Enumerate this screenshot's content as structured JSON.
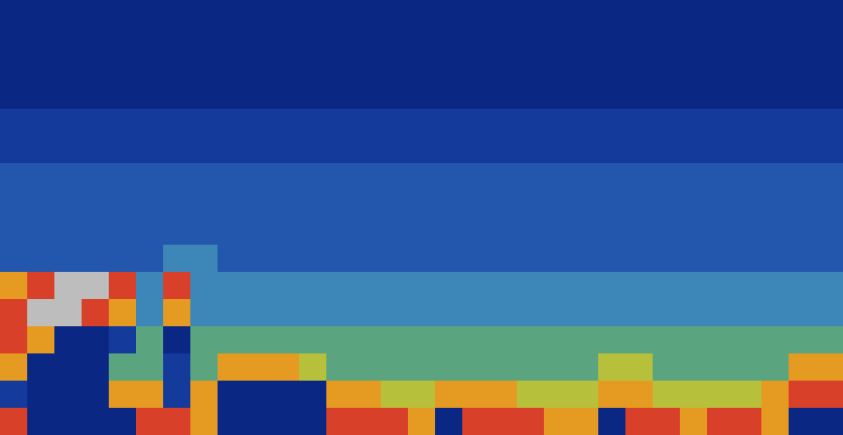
{
  "chart_data": {
    "type": "heatmap",
    "tick_labels": false,
    "clim": [
      0,
      8
    ],
    "colors": [
      "#0b2784",
      "#143b9c",
      "#2356ad",
      "#3c86b8",
      "#5aa57f",
      "#b7c03a",
      "#e59a22",
      "#d8402a",
      "#bdbdbd"
    ],
    "cells": [
      [
        0,
        0,
        0,
        0,
        0,
        0,
        0,
        0,
        0,
        0,
        0,
        0,
        0,
        0,
        0,
        0,
        0,
        0,
        0,
        0,
        0,
        0,
        0,
        0,
        0,
        0,
        0,
        0,
        0,
        0,
        0
      ],
      [
        0,
        0,
        0,
        0,
        0,
        0,
        0,
        0,
        0,
        0,
        0,
        0,
        0,
        0,
        0,
        0,
        0,
        0,
        0,
        0,
        0,
        0,
        0,
        0,
        0,
        0,
        0,
        0,
        0,
        0,
        0
      ],
      [
        0,
        0,
        0,
        0,
        0,
        0,
        0,
        0,
        0,
        0,
        0,
        0,
        0,
        0,
        0,
        0,
        0,
        0,
        0,
        0,
        0,
        0,
        0,
        0,
        0,
        0,
        0,
        0,
        0,
        0,
        0
      ],
      [
        0,
        0,
        0,
        0,
        0,
        0,
        0,
        0,
        0,
        0,
        0,
        0,
        0,
        0,
        0,
        0,
        0,
        0,
        0,
        0,
        0,
        0,
        0,
        0,
        0,
        0,
        0,
        0,
        0,
        0,
        0
      ],
      [
        1,
        1,
        1,
        1,
        1,
        1,
        1,
        1,
        1,
        1,
        1,
        1,
        1,
        1,
        1,
        1,
        1,
        1,
        1,
        1,
        1,
        1,
        1,
        1,
        1,
        1,
        1,
        1,
        1,
        1,
        1
      ],
      [
        1,
        1,
        1,
        1,
        1,
        1,
        1,
        1,
        1,
        1,
        1,
        1,
        1,
        1,
        1,
        1,
        1,
        1,
        1,
        1,
        1,
        1,
        1,
        1,
        1,
        1,
        1,
        1,
        1,
        1,
        1
      ],
      [
        2,
        2,
        2,
        2,
        2,
        2,
        2,
        2,
        2,
        2,
        2,
        2,
        2,
        2,
        2,
        2,
        2,
        2,
        2,
        2,
        2,
        2,
        2,
        2,
        2,
        2,
        2,
        2,
        2,
        2,
        2
      ],
      [
        2,
        2,
        2,
        2,
        2,
        2,
        2,
        2,
        2,
        2,
        2,
        2,
        2,
        2,
        2,
        2,
        2,
        2,
        2,
        2,
        2,
        2,
        2,
        2,
        2,
        2,
        2,
        2,
        2,
        2,
        2
      ],
      [
        2,
        2,
        2,
        2,
        2,
        2,
        2,
        2,
        2,
        2,
        2,
        2,
        2,
        2,
        2,
        2,
        2,
        2,
        2,
        2,
        2,
        2,
        2,
        2,
        2,
        2,
        2,
        2,
        2,
        2,
        2
      ],
      [
        2,
        2,
        2,
        2,
        2,
        2,
        3,
        3,
        2,
        2,
        2,
        2,
        2,
        2,
        2,
        2,
        2,
        2,
        2,
        2,
        2,
        2,
        2,
        2,
        2,
        2,
        2,
        2,
        2,
        2,
        2
      ],
      [
        6,
        7,
        8,
        8,
        7,
        3,
        7,
        3,
        3,
        3,
        3,
        3,
        3,
        3,
        3,
        3,
        3,
        3,
        3,
        3,
        3,
        3,
        3,
        3,
        3,
        3,
        3,
        3,
        3,
        3,
        3
      ],
      [
        7,
        8,
        8,
        7,
        6,
        3,
        6,
        3,
        3,
        3,
        3,
        3,
        3,
        3,
        3,
        3,
        3,
        3,
        3,
        3,
        3,
        3,
        3,
        3,
        3,
        3,
        3,
        3,
        3,
        3,
        3
      ],
      [
        7,
        6,
        0,
        0,
        1,
        4,
        0,
        4,
        4,
        4,
        4,
        4,
        4,
        4,
        4,
        4,
        4,
        4,
        4,
        4,
        4,
        4,
        4,
        4,
        4,
        4,
        4,
        4,
        4,
        4,
        4
      ],
      [
        6,
        0,
        0,
        0,
        4,
        4,
        1,
        4,
        6,
        6,
        6,
        5,
        4,
        4,
        4,
        4,
        4,
        4,
        4,
        4,
        4,
        4,
        5,
        5,
        4,
        4,
        4,
        4,
        4,
        6,
        6
      ],
      [
        1,
        0,
        0,
        0,
        6,
        6,
        1,
        6,
        0,
        0,
        0,
        0,
        6,
        6,
        5,
        5,
        6,
        6,
        6,
        5,
        5,
        5,
        6,
        6,
        5,
        5,
        5,
        5,
        6,
        7,
        7
      ],
      [
        7,
        0,
        0,
        0,
        0,
        7,
        7,
        6,
        0,
        0,
        0,
        0,
        7,
        7,
        7,
        6,
        0,
        7,
        7,
        7,
        6,
        6,
        0,
        7,
        7,
        6,
        7,
        7,
        6,
        0,
        0
      ]
    ]
  }
}
